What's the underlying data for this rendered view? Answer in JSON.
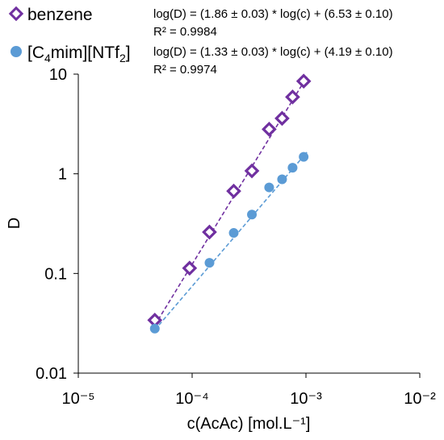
{
  "chart_data": {
    "type": "scatter",
    "xlabel": "c(AcAc) [mol.L⁻¹]",
    "ylabel": "D",
    "xscale": "log",
    "yscale": "log",
    "xlim": [
      1e-05,
      0.01
    ],
    "ylim": [
      0.01,
      10
    ],
    "x_tick_labels": [
      "10⁻⁵",
      "10⁻⁴",
      "10⁻³",
      "10⁻²"
    ],
    "y_tick_labels": [
      "0.01",
      "0.1",
      "1",
      "10"
    ],
    "grid": false,
    "legend_position": "top-left",
    "series": [
      {
        "name": "benzene",
        "marker": "diamond",
        "color": "#7030A0",
        "x": [
          4.7e-05,
          9.5e-05,
          0.000142,
          0.000232,
          0.000335,
          0.000475,
          0.000617,
          0.000763,
          0.000955
        ],
        "y": [
          0.034,
          0.113,
          0.26,
          0.67,
          1.07,
          2.8,
          3.6,
          5.9,
          8.5
        ],
        "fit": {
          "equation": "log(D) = (1.86 ± 0.03) * log(c) + (6.53 ± 0.10)",
          "r2": "R² = 0.9984",
          "slope": 1.86,
          "intercept": 6.53
        }
      },
      {
        "name": "[C4mim][NTf2]",
        "marker": "circle",
        "color": "#5B9BD5",
        "x": [
          4.7e-05,
          0.000142,
          0.000232,
          0.000335,
          0.000475,
          0.000617,
          0.000763,
          0.000955
        ],
        "y": [
          0.028,
          0.128,
          0.255,
          0.39,
          0.73,
          0.88,
          1.15,
          1.48
        ],
        "fit": {
          "equation": "log(D) = (1.33 ± 0.03) * log(c) + (4.19 ± 0.10)",
          "r2": "R² = 0.9974",
          "slope": 1.33,
          "intercept": 4.19
        }
      }
    ]
  }
}
